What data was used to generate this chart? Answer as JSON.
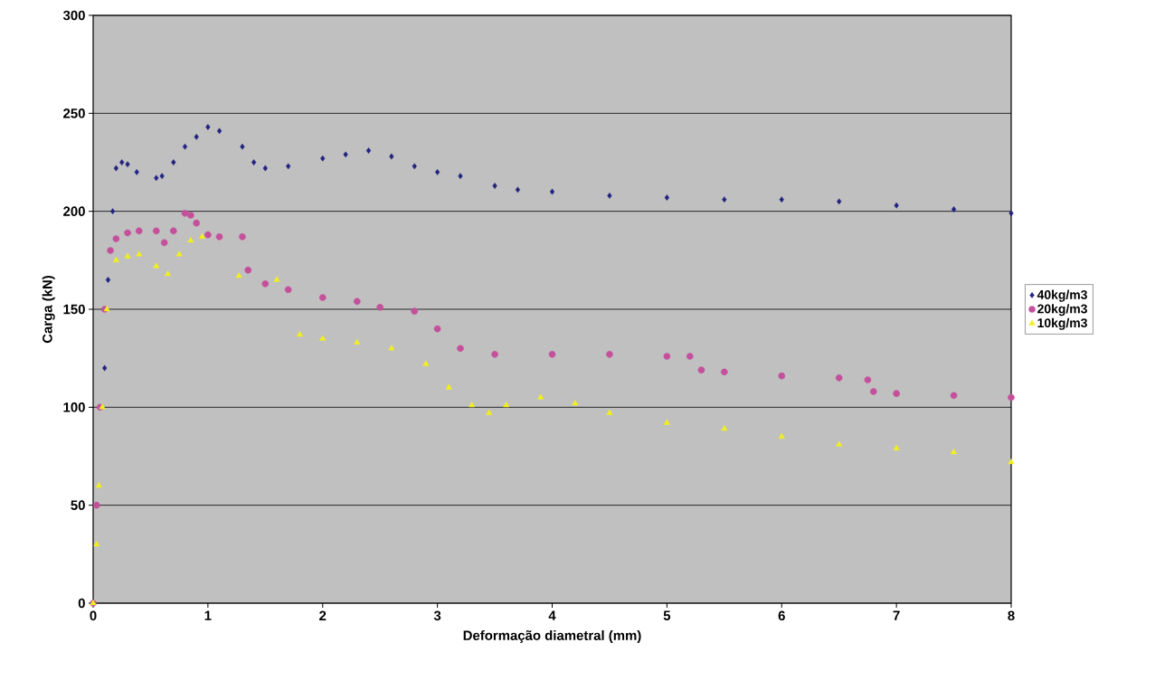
{
  "chart_data": {
    "type": "scatter",
    "xlabel": "Deformação diametral (mm)",
    "ylabel": "Carga (kN)",
    "xlim": [
      0,
      8
    ],
    "ylim": [
      0,
      300
    ],
    "xticks": [
      0,
      1,
      2,
      3,
      4,
      5,
      6,
      7,
      8
    ],
    "yticks": [
      0,
      50,
      100,
      150,
      200,
      250,
      300
    ],
    "grid": "y",
    "legend": "right",
    "series": [
      {
        "name": "40kg/m3",
        "color": "#22237f",
        "marker": "diamond",
        "x": [
          0.1,
          0.13,
          0.17,
          0.2,
          0.25,
          0.3,
          0.38,
          0.55,
          0.6,
          0.7,
          0.8,
          0.9,
          1.0,
          1.1,
          1.3,
          1.4,
          1.5,
          1.7,
          2.0,
          2.2,
          2.4,
          2.6,
          2.8,
          3.0,
          3.2,
          3.5,
          3.7,
          4.0,
          4.5,
          5.0,
          5.5,
          6.0,
          6.5,
          7.0,
          7.5,
          8.0
        ],
        "values": [
          120,
          165,
          200,
          222,
          225,
          224,
          220,
          217,
          218,
          225,
          233,
          238,
          243,
          241,
          233,
          225,
          222,
          223,
          227,
          229,
          231,
          228,
          223,
          220,
          218,
          213,
          211,
          210,
          208,
          207,
          206,
          206,
          205,
          203,
          201,
          199
        ]
      },
      {
        "name": "20kg/m3",
        "color": "#c4509c",
        "marker": "circle",
        "x": [
          0,
          0.03,
          0.06,
          0.1,
          0.15,
          0.2,
          0.3,
          0.4,
          0.55,
          0.62,
          0.7,
          0.8,
          0.85,
          0.9,
          1.0,
          1.1,
          1.3,
          1.35,
          1.5,
          1.7,
          2.0,
          2.3,
          2.5,
          2.8,
          3.0,
          3.2,
          3.5,
          4.0,
          4.5,
          5.0,
          5.2,
          5.3,
          5.5,
          6.0,
          6.5,
          6.75,
          6.8,
          7.0,
          7.5,
          8.0
        ],
        "values": [
          0,
          50,
          100,
          150,
          180,
          186,
          189,
          190,
          190,
          184,
          190,
          199,
          198,
          194,
          188,
          187,
          187,
          170,
          163,
          160,
          156,
          154,
          151,
          149,
          140,
          130,
          127,
          127,
          127,
          126,
          126,
          119,
          118,
          116,
          115,
          114,
          108,
          107,
          106,
          105
        ]
      },
      {
        "name": "10kg/m3",
        "color": "#f2ef1e",
        "marker": "triangle",
        "x": [
          0,
          0.03,
          0.05,
          0.08,
          0.12,
          0.2,
          0.3,
          0.4,
          0.55,
          0.65,
          0.75,
          0.85,
          0.95,
          1.27,
          1.6,
          1.8,
          2.0,
          2.3,
          2.6,
          2.9,
          3.1,
          3.3,
          3.45,
          3.6,
          3.9,
          4.2,
          4.5,
          5.0,
          5.5,
          6.0,
          6.5,
          7.0,
          7.5,
          8.0
        ],
        "values": [
          0,
          30,
          60,
          100,
          150,
          175,
          177,
          178,
          172,
          168,
          178,
          185,
          187,
          167,
          165,
          137,
          135,
          133,
          130,
          122,
          110,
          101,
          97,
          101,
          105,
          102,
          97,
          92,
          89,
          85,
          81,
          79,
          77,
          72
        ]
      }
    ]
  }
}
